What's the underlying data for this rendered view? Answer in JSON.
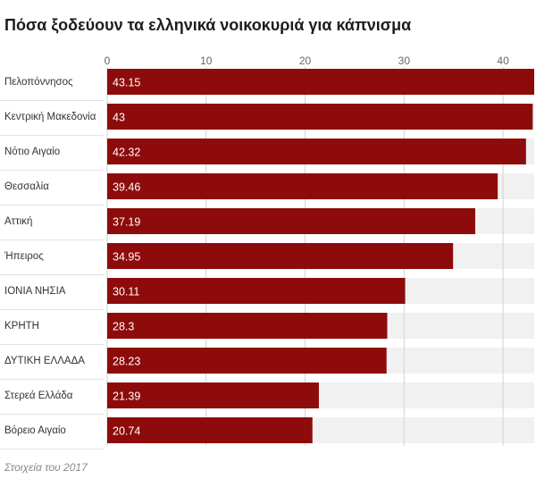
{
  "chart_data": {
    "type": "bar",
    "orientation": "horizontal",
    "title": "Πόσα ξοδεύουν τα ελληνικά νοικοκυριά για κάπνισμα",
    "categories": [
      "Πελοπόννησος",
      "Κεντρική Μακεδονία",
      "Νότιο Αιγαίο",
      "Θεσσαλία",
      "Αττική",
      "Ήπειρος",
      "ΙΟΝΙΑ ΝΗΣΙΑ",
      "ΚΡΗΤΗ",
      "ΔΥΤΙΚΗ ΕΛΛΑΔΑ",
      "Στερεά Ελλάδα",
      "Βόρειο Αιγαίο"
    ],
    "values": [
      43.15,
      43,
      42.32,
      39.46,
      37.19,
      34.95,
      30.11,
      28.3,
      28.23,
      21.39,
      20.74
    ],
    "xticks": [
      0,
      10,
      20,
      30,
      40
    ],
    "xlim": [
      0,
      43.15
    ],
    "xlabel": "",
    "ylabel": "",
    "grid": true,
    "legend": "none",
    "colors": {
      "bar": "#8e0b0b",
      "track": "#f1f1f1",
      "grid": "#d2d2d2",
      "row_separator": "#e2e2e2"
    }
  },
  "footer": {
    "note": "Στοιχεία του 2017"
  }
}
